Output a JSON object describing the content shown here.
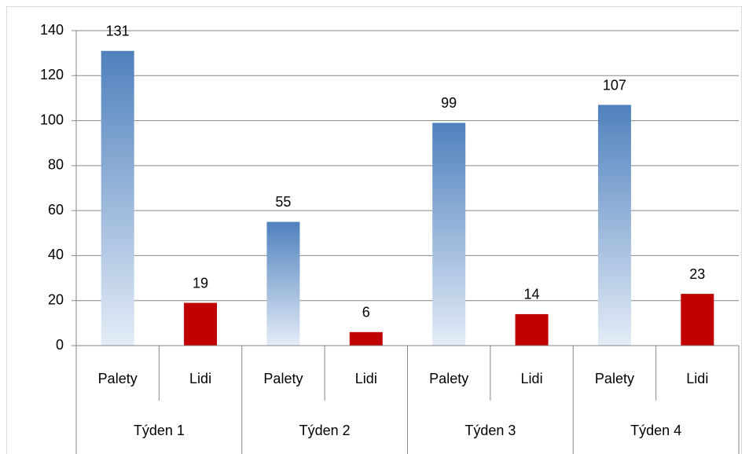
{
  "chart_data": {
    "type": "bar",
    "categories": [
      "Palety",
      "Lidi",
      "Palety",
      "Lidi",
      "Palety",
      "Lidi",
      "Palety",
      "Lidi"
    ],
    "groups": [
      "Týden 1",
      "Týden 2",
      "Týden 3",
      "Týden 4"
    ],
    "values": [
      131,
      19,
      55,
      6,
      99,
      14,
      107,
      23
    ],
    "colors": [
      [
        "#4f81bd",
        "#e4ecf7"
      ],
      "#c00000",
      [
        "#4f81bd",
        "#e4ecf7"
      ],
      "#c00000",
      [
        "#4f81bd",
        "#e4ecf7"
      ],
      "#c00000",
      [
        "#4f81bd",
        "#e4ecf7"
      ],
      "#c00000"
    ],
    "ylim": [
      0,
      140
    ],
    "yticks": [
      0,
      20,
      40,
      60,
      80,
      100,
      120,
      140
    ],
    "grid": true
  }
}
